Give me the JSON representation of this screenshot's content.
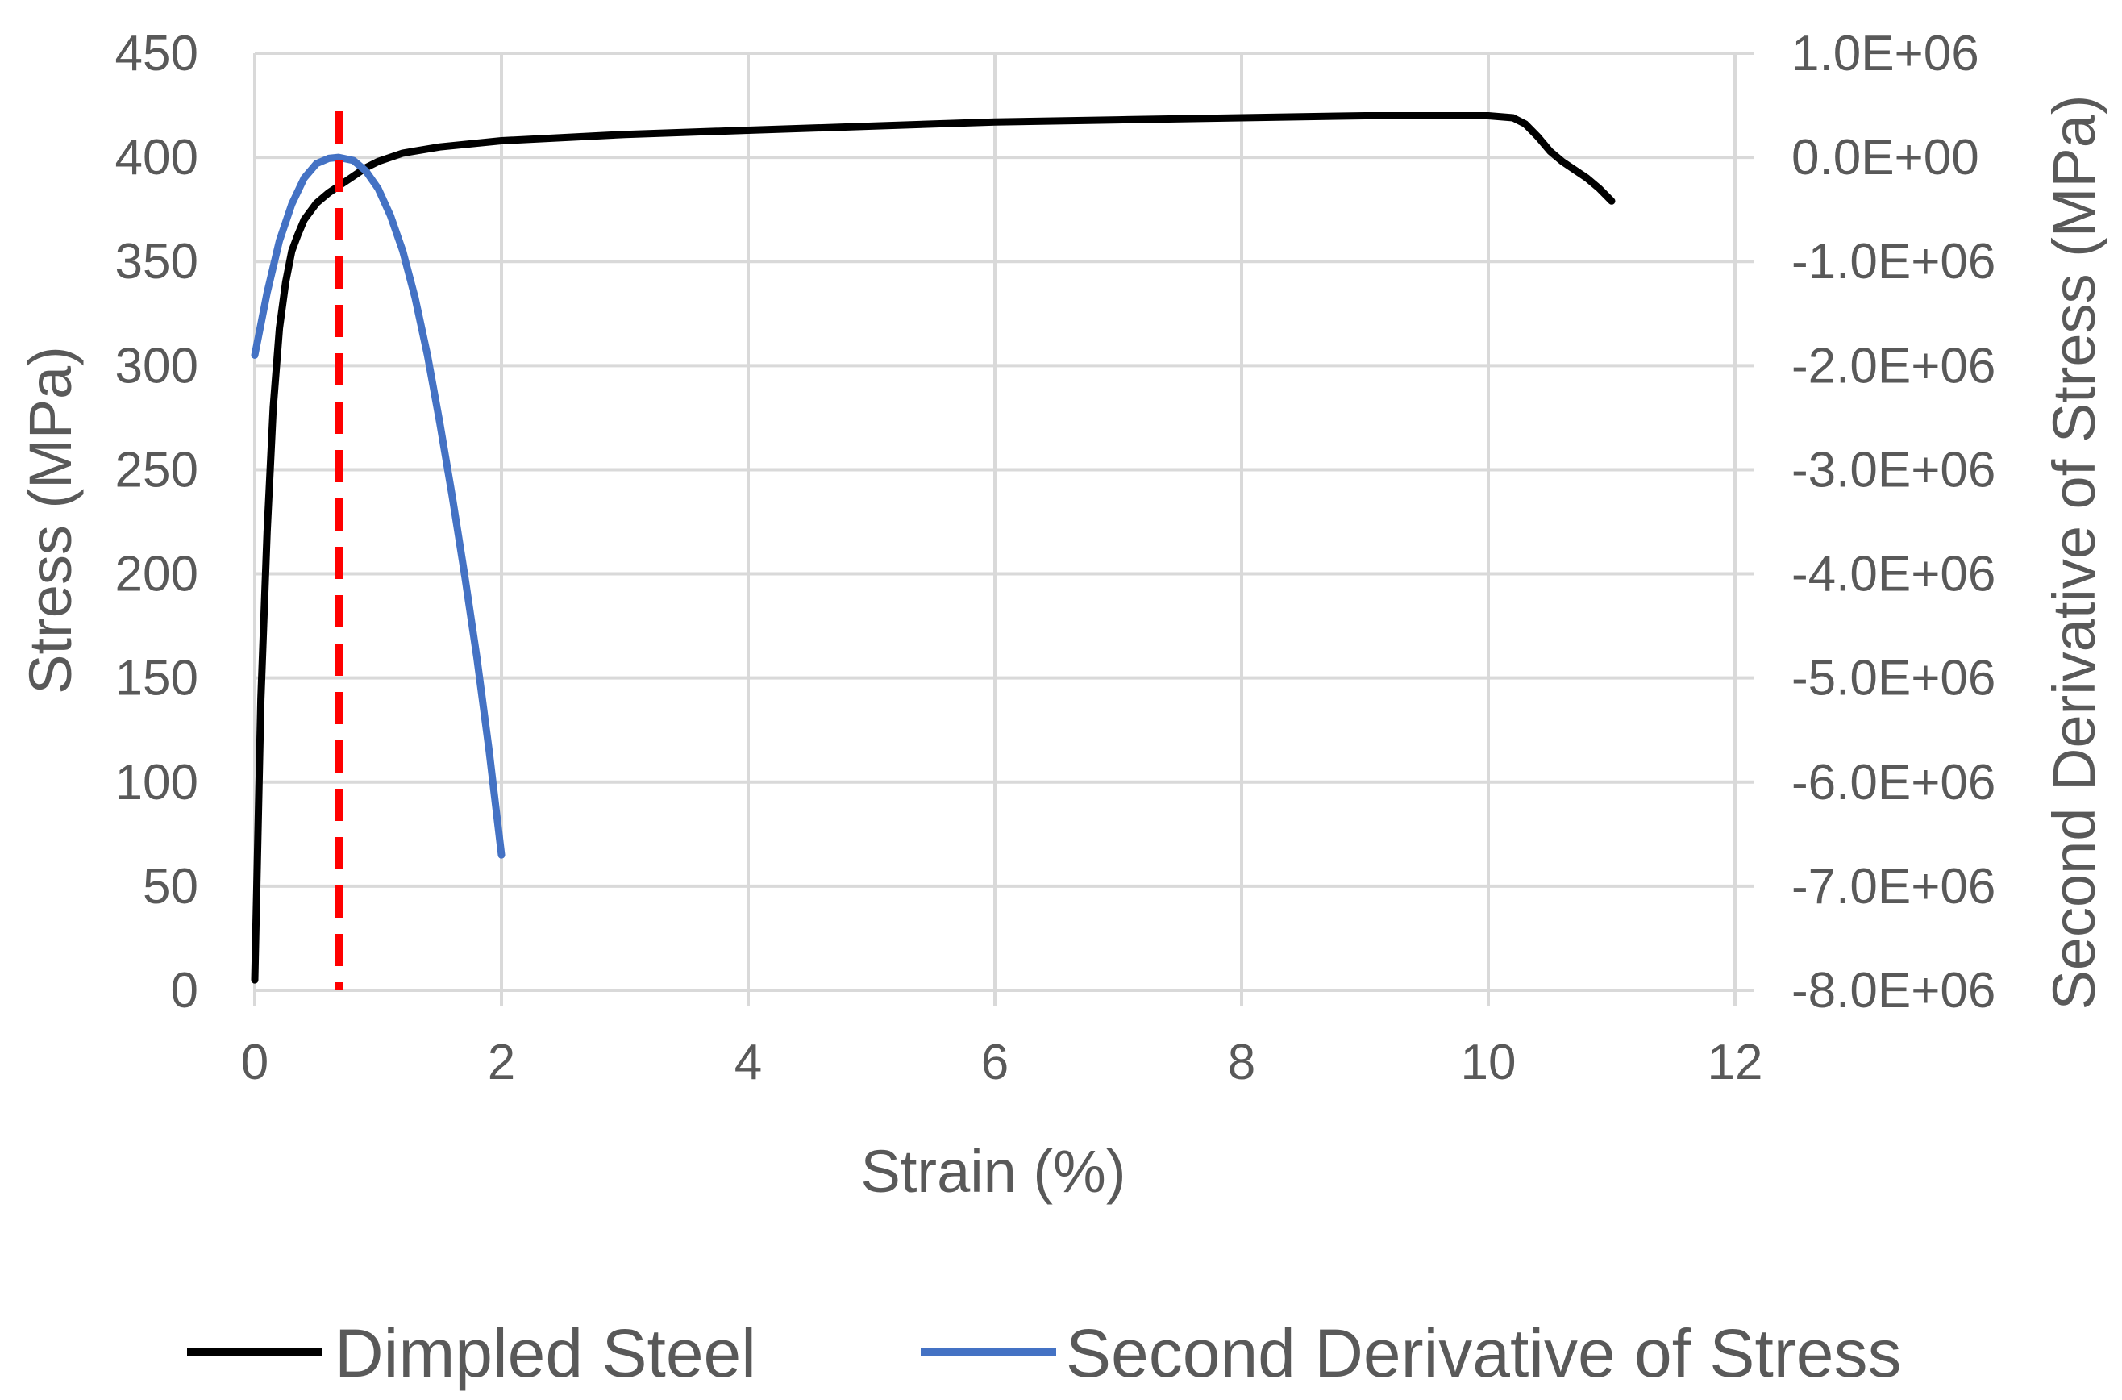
{
  "chart_data": {
    "type": "line",
    "title": "",
    "xlabel": "Strain (%)",
    "ylabel": "Stress (MPa)",
    "y2label": "Second Derivative of Stress (MPa)",
    "xlim": [
      0,
      12
    ],
    "ylim": [
      0,
      450
    ],
    "y2lim": [
      -8000000,
      1000000
    ],
    "xticks": [
      "0",
      "2",
      "4",
      "6",
      "8",
      "10",
      "12"
    ],
    "yticks": [
      "0",
      "50",
      "100",
      "150",
      "200",
      "250",
      "300",
      "350",
      "400",
      "450"
    ],
    "y2ticks": [
      "-8.0E+06",
      "-7.0E+06",
      "-6.0E+06",
      "-5.0E+06",
      "-4.0E+06",
      "-3.0E+06",
      "-2.0E+06",
      "-1.0E+06",
      "0.0E+00",
      "1.0E+06"
    ],
    "grid": true,
    "legend_position": "bottom",
    "series": [
      {
        "name": "Dimpled Steel",
        "axis": "left",
        "color": "#000000",
        "x": [
          0.0,
          0.02,
          0.05,
          0.1,
          0.15,
          0.2,
          0.25,
          0.3,
          0.35,
          0.4,
          0.5,
          0.6,
          0.7,
          0.8,
          0.9,
          1.0,
          1.2,
          1.5,
          2.0,
          3.0,
          4.0,
          5.0,
          6.0,
          7.0,
          8.0,
          9.0,
          9.5,
          10.0,
          10.2,
          10.3,
          10.4,
          10.5,
          10.6,
          10.7,
          10.8,
          10.9,
          11.0
        ],
        "y": [
          5,
          60,
          140,
          220,
          280,
          318,
          340,
          355,
          363,
          370,
          378,
          383,
          387,
          391,
          395,
          398,
          402,
          405,
          408,
          411,
          413,
          415,
          417,
          418,
          419,
          420,
          420,
          420,
          419,
          416,
          410,
          403,
          398,
          394,
          390,
          385,
          379
        ]
      },
      {
        "name": "Second Derivative of Stress",
        "axis": "right",
        "color": "#4472c4",
        "x": [
          0.0,
          0.1,
          0.2,
          0.3,
          0.4,
          0.5,
          0.6,
          0.68,
          0.8,
          0.9,
          1.0,
          1.1,
          1.2,
          1.3,
          1.4,
          1.5,
          1.6,
          1.7,
          1.8,
          1.9,
          2.0
        ],
        "y": [
          -1900000,
          -1300000,
          -800000,
          -450000,
          -200000,
          -60000,
          -10000,
          0,
          -30000,
          -130000,
          -300000,
          -560000,
          -900000,
          -1350000,
          -1900000,
          -2550000,
          -3250000,
          -4000000,
          -4800000,
          -5700000,
          -6700000
        ]
      }
    ],
    "annotations": [
      {
        "type": "vertical-dashed-line",
        "x": 0.68,
        "color": "#ff0000"
      }
    ]
  }
}
